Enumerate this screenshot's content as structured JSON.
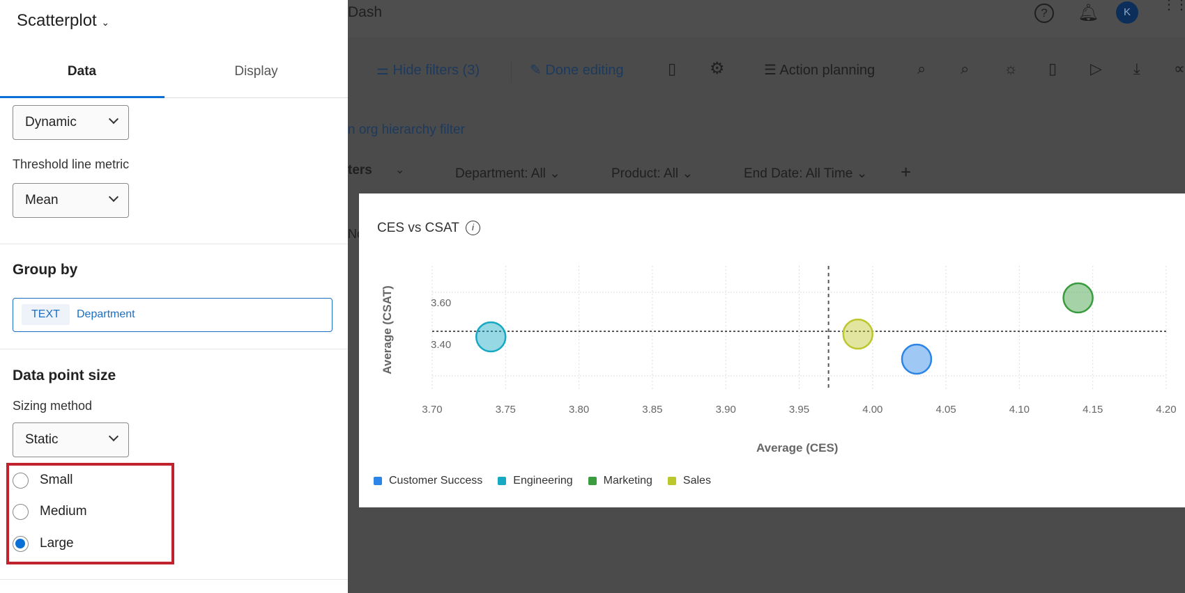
{
  "header": {
    "dashboard_name": "Dash",
    "avatar_initial": "K"
  },
  "toolbar": {
    "hide_filters": "Hide filters (3)",
    "done_editing": "Done editing",
    "action_planning": "Action planning"
  },
  "filters": {
    "org_hierarchy_link": "n org hierarchy filter",
    "filters_label": "ters",
    "department": "Department: All",
    "product": "Product: All",
    "end_date": "End Date: All Time",
    "partial_tab": "No"
  },
  "sidebar": {
    "widget_type": "Scatterplot",
    "tabs": [
      {
        "label": "Data",
        "active": true
      },
      {
        "label": "Display",
        "active": false
      }
    ],
    "threshold_type": "Dynamic",
    "threshold_metric_label": "Threshold line metric",
    "threshold_metric": "Mean",
    "group_by_heading": "Group by",
    "group_by_type": "TEXT",
    "group_by_field": "Department",
    "data_point_heading": "Data point size",
    "sizing_method_label": "Sizing method",
    "sizing_method": "Static",
    "sizes": [
      {
        "label": "Small",
        "selected": false
      },
      {
        "label": "Medium",
        "selected": false
      },
      {
        "label": "Large",
        "selected": true
      }
    ]
  },
  "colors": {
    "accent": "#0a6fd6",
    "highlight_box": "#c0222e"
  },
  "chart_data": {
    "type": "scatter",
    "title": "CES vs CSAT",
    "xlabel": "Average (CES)",
    "ylabel": "Average (CSAT)",
    "xlim": [
      3.7,
      4.2
    ],
    "x_ticks": [
      "3.70",
      "3.75",
      "3.80",
      "3.85",
      "3.90",
      "3.95",
      "4.00",
      "4.05",
      "4.10",
      "4.15",
      "4.20"
    ],
    "y_ticks": [
      "3.60",
      "3.40"
    ],
    "grid": true,
    "legend_placement": "bottom-left",
    "threshold": {
      "x_mean": 3.97,
      "y_mean": 3.46
    },
    "series": [
      {
        "name": "Customer Success",
        "color": "#2b84e6",
        "x": 4.03,
        "y": 3.36
      },
      {
        "name": "Engineering",
        "color": "#17a8c3",
        "x": 3.74,
        "y": 3.44
      },
      {
        "name": "Marketing",
        "color": "#3a9b3f",
        "x": 4.14,
        "y": 3.58
      },
      {
        "name": "Sales",
        "color": "#bcc62d",
        "x": 3.99,
        "y": 3.45
      }
    ]
  }
}
